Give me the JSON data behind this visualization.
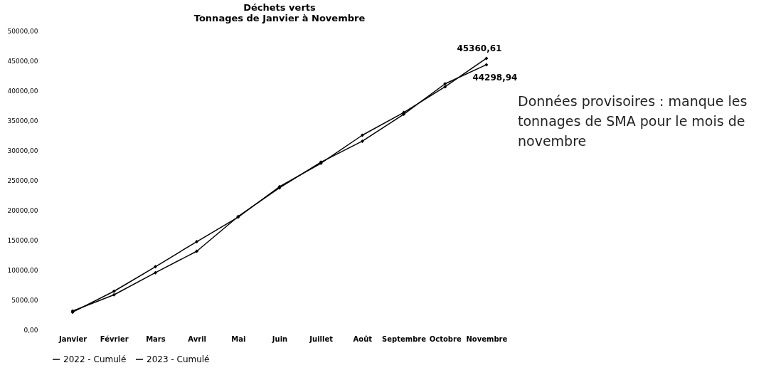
{
  "chart_data": {
    "type": "line",
    "title": [
      "Déchets verts",
      "Tonnages de Janvier à Novembre"
    ],
    "categories": [
      "Janvier",
      "Février",
      "Mars",
      "Avril",
      "Mai",
      "Juin",
      "Juillet",
      "Août",
      "Septembre",
      "Octobre",
      "Novembre"
    ],
    "series": [
      {
        "name": "2022 - Cumulé",
        "color": "#000000",
        "values": [
          2900,
          6400,
          10500,
          14700,
          18800,
          23900,
          27800,
          32500,
          36300,
          40600,
          45360.61
        ],
        "value_labels": [
          null,
          null,
          null,
          null,
          null,
          null,
          null,
          null,
          null,
          null,
          "45360,61"
        ]
      },
      {
        "name": "2023 - Cumulé",
        "color": "#000000",
        "values": [
          3100,
          5800,
          9500,
          13100,
          18900,
          23700,
          28000,
          31500,
          36000,
          41100,
          44298.94
        ],
        "value_labels": [
          null,
          null,
          null,
          null,
          null,
          null,
          null,
          null,
          null,
          null,
          "44298,94"
        ]
      }
    ],
    "ylim": [
      0,
      50000
    ],
    "yticks": [
      {
        "value": 0,
        "label": "0,00"
      },
      {
        "value": 5000,
        "label": "5000,00"
      },
      {
        "value": 10000,
        "label": "10000,00"
      },
      {
        "value": 15000,
        "label": "15000,00"
      },
      {
        "value": 20000,
        "label": "20000,00"
      },
      {
        "value": 25000,
        "label": "25000,00"
      },
      {
        "value": 30000,
        "label": "30000,00"
      },
      {
        "value": 35000,
        "label": "35000,00"
      },
      {
        "value": 40000,
        "label": "40000,00"
      },
      {
        "value": 45000,
        "label": "45000,00"
      },
      {
        "value": 50000,
        "label": "50000,00"
      }
    ],
    "grid": false,
    "legend": "bottom",
    "marker": "diamond",
    "line_style": "solid",
    "annotations": [
      "Données provisoires : manque les tonnages de SMA pour le mois de novembre"
    ]
  }
}
